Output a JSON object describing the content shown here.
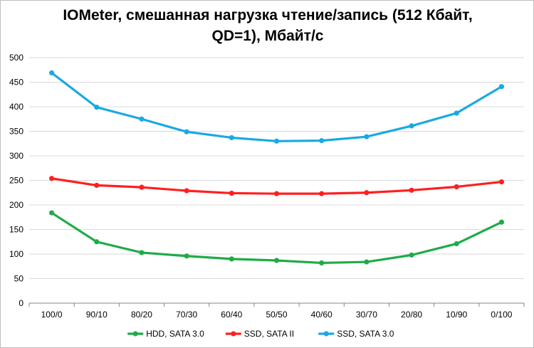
{
  "chart_data": {
    "type": "line",
    "title": "IOMeter, смешанная нагрузка чтение/запись (512 Кбайт,\nQD=1), Мбайт/с",
    "categories": [
      "100/0",
      "90/10",
      "80/20",
      "70/30",
      "60/40",
      "50/50",
      "40/60",
      "30/70",
      "20/80",
      "10/90",
      "0/100"
    ],
    "series": [
      {
        "name": "HDD, SATA 3.0",
        "color": "#1fab48",
        "values": [
          184,
          125,
          103,
          96,
          90,
          87,
          82,
          84,
          98,
          121,
          165
        ]
      },
      {
        "name": "SSD, SATA II",
        "color": "#ff1f1f",
        "values": [
          254,
          240,
          236,
          229,
          224,
          223,
          223,
          225,
          230,
          237,
          247
        ]
      },
      {
        "name": "SSD, SATA 3.0",
        "color": "#1aa9e2",
        "values": [
          469,
          399,
          375,
          349,
          337,
          330,
          331,
          339,
          361,
          387,
          441
        ]
      }
    ],
    "yticks": [
      0,
      50,
      100,
      150,
      200,
      250,
      300,
      350,
      400,
      450,
      500
    ],
    "ylim": [
      0,
      500
    ],
    "xlabel": "",
    "ylabel": "",
    "grid": true,
    "legend_position": "bottom"
  }
}
